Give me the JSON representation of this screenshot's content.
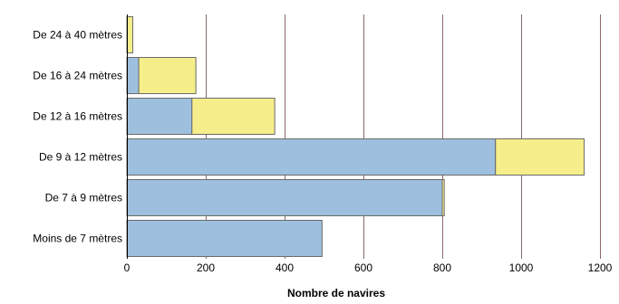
{
  "chart_data": {
    "type": "bar",
    "orientation": "horizontal",
    "stacked": true,
    "categories": [
      "De 24 à 40 mètres",
      "De 16 à 24 mètres",
      "De 12 à 16 mètres",
      "De 9 à 12 mètres",
      "De 7 à 9 mètres",
      "Moins de 7 mètres"
    ],
    "series": [
      {
        "color": "#9ec0de",
        "values": [
          0,
          30,
          165,
          935,
          800,
          495
        ]
      },
      {
        "color": "#f5ee8a",
        "values": [
          15,
          145,
          210,
          225,
          5,
          0
        ]
      }
    ],
    "xlabel": "Nombre de navires",
    "ylabel": "",
    "xlim": [
      0,
      1200
    ],
    "xticks": [
      0,
      200,
      400,
      600,
      800,
      1000,
      1200
    ],
    "grid": "vertical",
    "legend": "none"
  }
}
